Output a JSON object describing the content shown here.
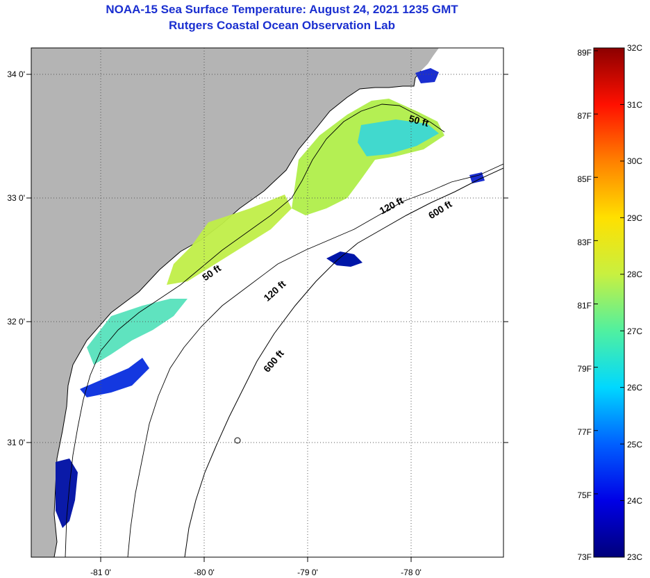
{
  "header": {
    "title": "NOAA-15 Sea Surface Temperature:  August 24, 2021 1235 GMT",
    "subtitle": "Rutgers Coastal Ocean Observation Lab"
  },
  "map": {
    "lat_labels": [
      "34 0'",
      "33 0'",
      "32 0'",
      "31 0'"
    ],
    "lon_labels": [
      "-81 0'",
      "-80 0'",
      "-79 0'",
      "-78 0'"
    ],
    "contour_labels": {
      "c50_a": "50 ft",
      "c50_b": "50 ft",
      "c120_a": "120 ft",
      "c120_b": "120 ft",
      "c600_a": "600 ft",
      "c600_b": "600 ft"
    },
    "land_color": "#b4b4b4",
    "ocean_color": "#ffffff"
  },
  "colorbar": {
    "fahrenheit": [
      "89F",
      "87F",
      "85F",
      "83F",
      "81F",
      "79F",
      "77F",
      "75F",
      "73F"
    ],
    "celsius": [
      "32C",
      "31C",
      "30C",
      "29C",
      "28C",
      "27C",
      "26C",
      "25C",
      "24C",
      "23C"
    ],
    "min_c": 23,
    "max_c": 32,
    "stops": [
      "#00007a",
      "#0000e6",
      "#0060ff",
      "#00d8ff",
      "#50f0a0",
      "#c8f040",
      "#ffe000",
      "#ff8000",
      "#ff1000",
      "#8c0000"
    ]
  }
}
